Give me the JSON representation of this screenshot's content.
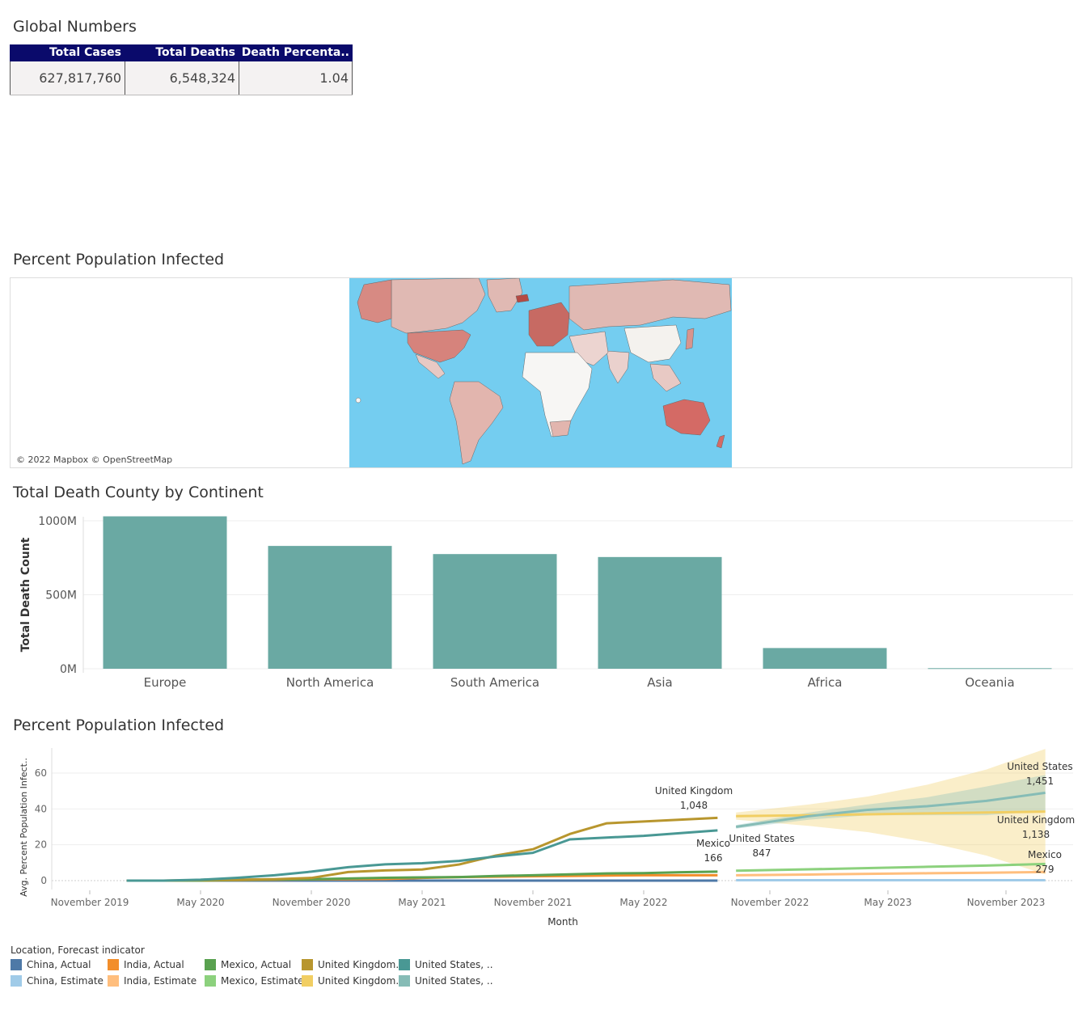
{
  "kpi": {
    "title": "Global Numbers",
    "headers": [
      "Total Cases",
      "Total Deaths",
      "Death Percenta.."
    ],
    "values": [
      "627,817,760",
      "6,548,324",
      "1.04"
    ],
    "header_color": "#0a0a6b"
  },
  "map": {
    "title": "Percent Population Infected",
    "credit": "© 2022 Mapbox © OpenStreetMap",
    "ocean_color": "#74cdf0"
  },
  "bar_title": "Total Death County by Continent",
  "line_title": "Percent Population Infected",
  "chart_data": [
    {
      "type": "bar",
      "categories": [
        "Europe",
        "North America",
        "South America",
        "Asia",
        "Africa",
        "Oceania"
      ],
      "values": [
        1030,
        830,
        775,
        755,
        140,
        4
      ],
      "ylabel": "Total Death Count",
      "yticks": [
        "0M",
        "500M",
        "1000M"
      ],
      "ylim": [
        0,
        1000
      ],
      "color": "#6aa9a3",
      "grid": true
    },
    {
      "type": "line",
      "xlabel": "Month",
      "ylabel": "Avg. Percent Population Infect..",
      "xticks": [
        "November 2019",
        "May 2020",
        "November 2020",
        "May 2021",
        "November 2021",
        "May 2022",
        "November 2022",
        "May 2023",
        "November 2023"
      ],
      "yticks": [
        "0",
        "20",
        "40",
        "60"
      ],
      "ylim": [
        0,
        70
      ],
      "x": [
        "2020-01",
        "2020-03",
        "2020-05",
        "2020-07",
        "2020-09",
        "2020-11",
        "2021-01",
        "2021-03",
        "2021-05",
        "2021-07",
        "2021-09",
        "2021-11",
        "2022-01",
        "2022-03",
        "2022-05",
        "2022-07",
        "2022-09"
      ],
      "series": [
        {
          "name": "China, Actual",
          "color": "#4e79a7",
          "values": [
            0,
            0,
            0,
            0,
            0,
            0,
            0,
            0,
            0,
            0,
            0,
            0,
            0,
            0,
            0,
            0,
            0
          ]
        },
        {
          "name": "India, Actual",
          "color": "#f28e2b",
          "values": [
            0,
            0,
            0,
            0.3,
            0.5,
            0.7,
            0.8,
            0.9,
            1.5,
            2,
            2.2,
            2.4,
            2.6,
            2.8,
            3,
            3,
            3
          ]
        },
        {
          "name": "Mexico, Actual",
          "color": "#59a14f",
          "values": [
            0,
            0,
            0,
            0.4,
            0.6,
            0.8,
            1.2,
            1.6,
            1.8,
            2,
            2.6,
            3,
            3.5,
            4,
            4.2,
            4.7,
            5
          ]
        },
        {
          "name": "United Kingdom, Actual",
          "color": "#b8962e",
          "values": [
            0,
            0,
            0.3,
            0.5,
            0.8,
            1.5,
            4.8,
            5.7,
            6.2,
            9,
            14,
            17.5,
            26,
            32,
            33,
            34,
            35
          ]
        },
        {
          "name": "United States, Actual",
          "color": "#499894",
          "values": [
            0,
            0,
            0.5,
            1.6,
            3,
            5,
            7.5,
            9.1,
            9.7,
            11,
            13.5,
            15.5,
            23,
            24,
            25,
            26.5,
            28
          ]
        }
      ],
      "forecast_x": [
        "2022-10",
        "2023-01",
        "2023-04",
        "2023-07",
        "2023-10",
        "2024-01"
      ],
      "forecast_series": [
        {
          "name": "China, Estimate",
          "color": "#a0cbe8",
          "values": [
            0.2,
            0.2,
            0.2,
            0.2,
            0.2,
            0.2
          ]
        },
        {
          "name": "India, Estimate",
          "color": "#ffbe7d",
          "values": [
            3,
            3.4,
            3.8,
            4.1,
            4.4,
            4.8
          ]
        },
        {
          "name": "Mexico, Estimate",
          "color": "#8cd17d",
          "values": [
            5.5,
            6.3,
            7,
            7.7,
            8.4,
            9.3
          ]
        },
        {
          "name": "United Kingdom, Estimate",
          "color": "#f1ce63",
          "values": [
            36,
            36.5,
            37,
            37.5,
            38,
            38.5
          ]
        },
        {
          "name": "United States, Estimate",
          "color": "#86bcb6",
          "values": [
            30,
            36,
            39.5,
            41.5,
            44.5,
            49
          ]
        }
      ],
      "annotations": [
        {
          "label": "United Kingdom",
          "value": "1,048"
        },
        {
          "label": "Mexico",
          "value": "166"
        },
        {
          "label": "United States",
          "value": "847"
        },
        {
          "label": "United States",
          "value": "1,451"
        },
        {
          "label": "United Kingdom",
          "value": "1,138"
        },
        {
          "label": "Mexico",
          "value": "279"
        }
      ]
    }
  ],
  "legend": {
    "title": "Location, Forecast indicator",
    "items": [
      {
        "label": "China, Actual",
        "color": "#4e79a7"
      },
      {
        "label": "India, Actual",
        "color": "#f28e2b"
      },
      {
        "label": "Mexico, Actual",
        "color": "#59a14f"
      },
      {
        "label": "United Kingdom..",
        "color": "#b8962e"
      },
      {
        "label": "United States, ..",
        "color": "#499894"
      },
      {
        "label": "China, Estimate",
        "color": "#a0cbe8"
      },
      {
        "label": "India, Estimate",
        "color": "#ffbe7d"
      },
      {
        "label": "Mexico, Estimate",
        "color": "#8cd17d"
      },
      {
        "label": "United Kingdom..",
        "color": "#f1ce63"
      },
      {
        "label": "United States, ..",
        "color": "#86bcb6"
      }
    ]
  }
}
